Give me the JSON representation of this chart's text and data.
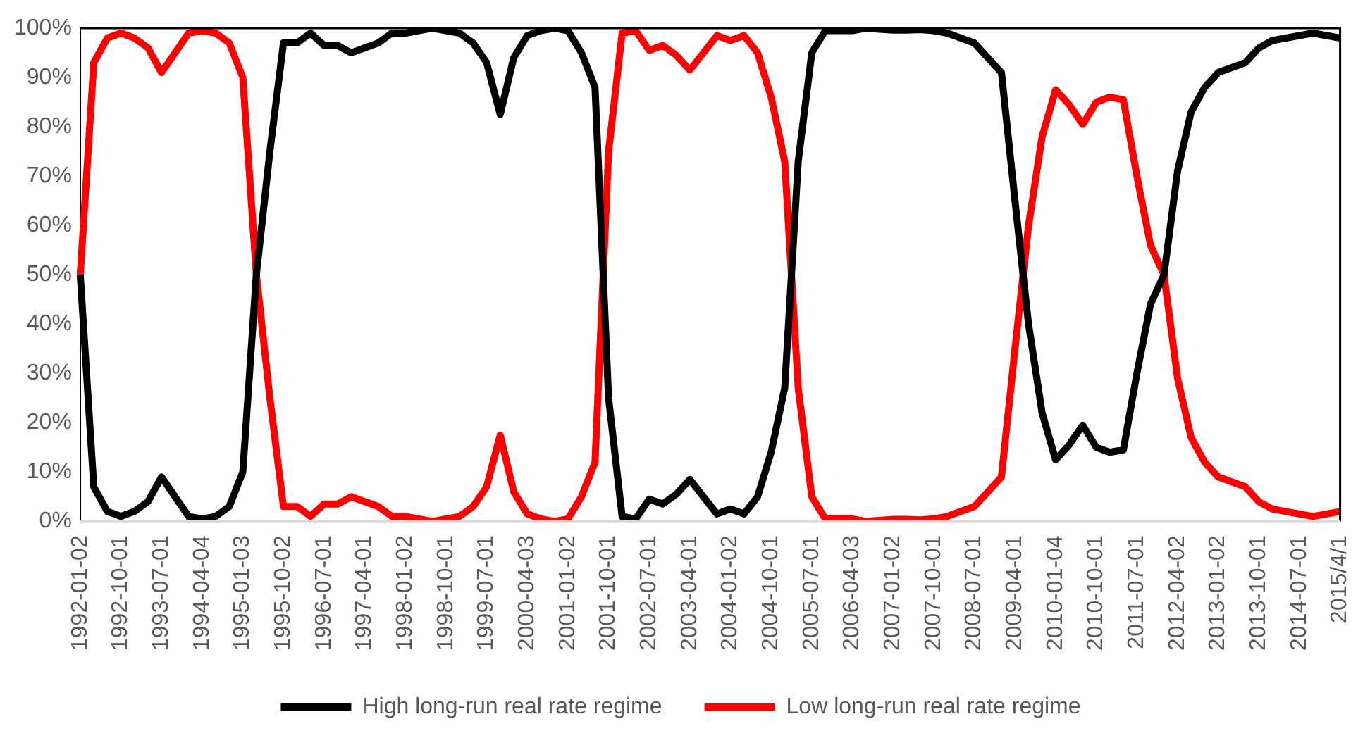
{
  "chart_data": {
    "type": "line",
    "categories": [
      "1992-01-02",
      null,
      null,
      "1992-10-01",
      null,
      null,
      "1993-07-01",
      null,
      null,
      "1994-04-04",
      null,
      null,
      "1995-01-03",
      null,
      null,
      "1995-10-02",
      null,
      null,
      "1996-07-01",
      null,
      null,
      "1997-04-01",
      null,
      null,
      "1998-01-02",
      null,
      null,
      "1998-10-01",
      null,
      null,
      "1999-07-01",
      null,
      null,
      "2000-04-03",
      null,
      null,
      "2001-01-02",
      null,
      null,
      "2001-10-01",
      null,
      null,
      "2002-07-01",
      null,
      null,
      "2003-04-01",
      null,
      null,
      "2004-01-02",
      null,
      null,
      "2004-10-01",
      null,
      null,
      "2005-07-01",
      null,
      null,
      "2006-04-03",
      null,
      null,
      "2007-01-02",
      null,
      null,
      "2007-10-01",
      null,
      null,
      "2008-07-01",
      null,
      null,
      "2009-04-01",
      null,
      null,
      "2010-01-04",
      null,
      null,
      "2010-10-01",
      null,
      null,
      "2011-07-01",
      null,
      null,
      "2012-04-02",
      null,
      null,
      "2013-01-02",
      null,
      null,
      "2013-10-01",
      null,
      null,
      "2014-07-01",
      null,
      null,
      "2015/4/1"
    ],
    "series": [
      {
        "name": "High long-run real rate regime",
        "color": "#000000",
        "values": [
          50,
          7,
          2,
          1,
          2,
          4,
          9,
          5,
          1,
          0.5,
          1,
          3,
          10,
          50,
          75,
          97,
          97,
          99,
          96.5,
          96.5,
          95,
          96,
          97,
          99,
          99,
          99.5,
          100,
          99.5,
          99,
          97,
          93,
          82.5,
          94,
          98.5,
          99.5,
          100,
          99.5,
          95,
          88,
          25,
          1,
          0.5,
          4.5,
          3.5,
          5.5,
          8.5,
          5,
          1.5,
          2.5,
          1.5,
          5,
          14,
          27,
          73,
          95,
          99.5,
          99.5,
          99.5,
          100,
          99.8,
          99.6,
          99.6,
          99.7,
          99.5,
          99,
          98,
          97,
          94,
          91,
          65,
          40,
          22,
          12.5,
          15.5,
          19.5,
          15,
          14,
          14.5,
          30,
          44,
          50,
          71,
          83,
          88,
          91,
          92,
          93,
          96,
          97.5,
          98,
          98.5,
          99,
          98.5,
          98
        ]
      },
      {
        "name": "Low long-run real rate regime",
        "color": "#ff0000",
        "values": [
          50,
          93,
          98,
          99,
          98,
          96,
          91,
          95,
          99,
          99.5,
          99,
          97,
          90,
          50,
          25,
          3,
          3,
          1,
          3.5,
          3.5,
          5,
          4,
          3,
          1,
          1,
          0.5,
          0,
          0.5,
          1,
          3,
          7,
          17.5,
          6,
          1.5,
          0.5,
          0,
          0.5,
          5,
          12,
          75,
          99,
          99.5,
          95.5,
          96.5,
          94.5,
          91.5,
          95,
          98.5,
          97.5,
          98.5,
          95,
          86,
          73,
          27,
          5,
          0.5,
          0.5,
          0.5,
          0,
          0.2,
          0.4,
          0.4,
          0.3,
          0.5,
          1,
          2,
          3,
          6,
          9,
          35,
          60,
          78,
          87.5,
          84.5,
          80.5,
          85,
          86,
          85.5,
          70,
          56,
          50,
          29,
          17,
          12,
          9,
          8,
          7,
          4,
          2.5,
          2,
          1.5,
          1,
          1.5,
          2
        ]
      }
    ],
    "ylim": [
      0,
      100
    ],
    "yticks": [
      {
        "value": 0,
        "label": "0%"
      },
      {
        "value": 10,
        "label": "10%"
      },
      {
        "value": 20,
        "label": "20%"
      },
      {
        "value": 30,
        "label": "30%"
      },
      {
        "value": 40,
        "label": "40%"
      },
      {
        "value": 50,
        "label": "50%"
      },
      {
        "value": 60,
        "label": "60%"
      },
      {
        "value": 70,
        "label": "70%"
      },
      {
        "value": 80,
        "label": "80%"
      },
      {
        "value": 90,
        "label": "90%"
      },
      {
        "value": 100,
        "label": "100%"
      }
    ],
    "grid": false,
    "legend": "bottom"
  }
}
